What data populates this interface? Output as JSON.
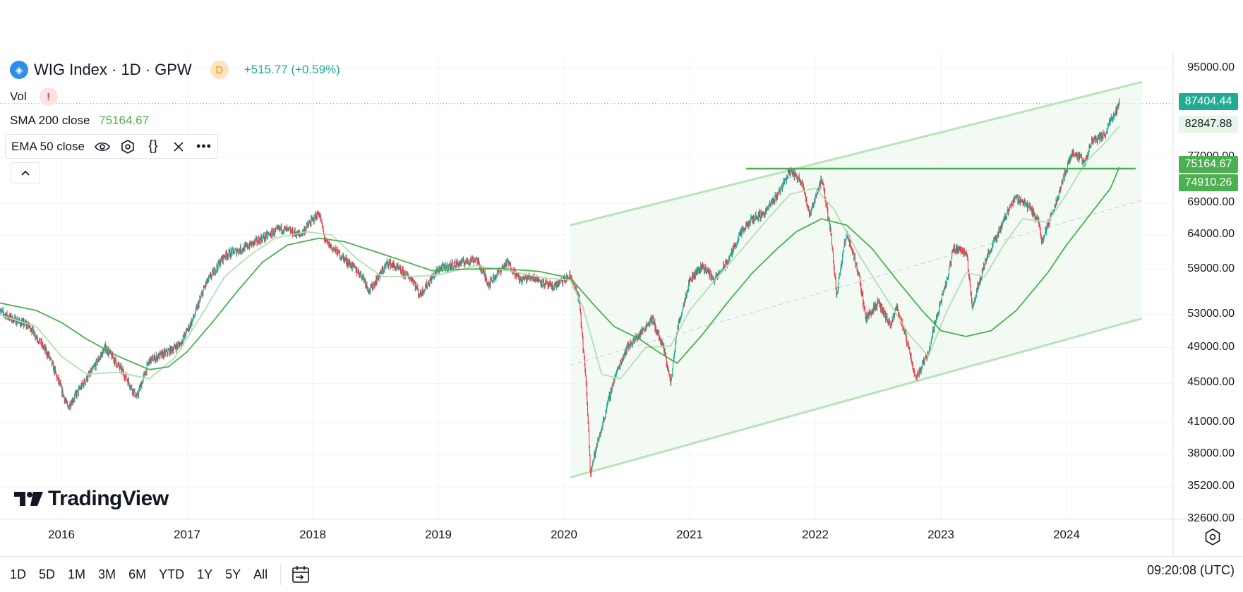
{
  "legend": {
    "symbol": "WIG Index · 1D · GPW",
    "interval_badge": "D",
    "change": "+515.77 (+0.59%)",
    "vol_label": "Vol",
    "vol_warning": "!",
    "sma_label": "SMA 200 close",
    "sma_value": "75164.67",
    "ema_label": "EMA 50 close"
  },
  "bottom_bar": {
    "ranges": [
      "1D",
      "5D",
      "1M",
      "3M",
      "6M",
      "YTD",
      "1Y",
      "5Y",
      "All"
    ],
    "clock": "09:20:08 (UTC)"
  },
  "watermark": "TradingView",
  "price_tags": {
    "last_price": "87404.44",
    "ema_value": "82847.88",
    "sma_value": "75164.67",
    "level_value": "74910.26"
  },
  "colors": {
    "up": "#22ab94",
    "down": "#f23645",
    "sma": "#4caf50",
    "ema": "#b2dfb4",
    "channel": "#b9e3bb",
    "channel_fill": "#e8f5e9",
    "level": "#4caf50"
  },
  "chart_data": {
    "type": "candlestick",
    "title": "WIG Index · 1D · GPW",
    "x_ticks": [
      "2016",
      "2017",
      "2018",
      "2019",
      "2020",
      "2021",
      "2022",
      "2023",
      "2024"
    ],
    "y_ticks": [
      95000,
      77000,
      69000,
      64000,
      59000,
      53000,
      49000,
      45000,
      41000,
      38000,
      35200,
      32600
    ],
    "y_tick_labels": [
      "95000.00",
      "77000.00",
      "69000.00",
      "64000.00",
      "59000.00",
      "53000.00",
      "49000.00",
      "45000.00",
      "41000.00",
      "38000.00",
      "35200.00",
      "32600.00"
    ],
    "ylim": [
      32600,
      95000
    ],
    "xlim": [
      2015.5,
      2024.6
    ],
    "scale": "log",
    "close_path": [
      [
        2015.5,
        53500
      ],
      [
        2015.6,
        52500
      ],
      [
        2015.75,
        51500
      ],
      [
        2015.9,
        48000
      ],
      [
        2016.05,
        42500
      ],
      [
        2016.25,
        46500
      ],
      [
        2016.35,
        49000
      ],
      [
        2016.5,
        46000
      ],
      [
        2016.6,
        43500
      ],
      [
        2016.7,
        47500
      ],
      [
        2016.85,
        48500
      ],
      [
        2016.95,
        49500
      ],
      [
        2017.05,
        52500
      ],
      [
        2017.15,
        57000
      ],
      [
        2017.3,
        61000
      ],
      [
        2017.45,
        62000
      ],
      [
        2017.6,
        63500
      ],
      [
        2017.75,
        65000
      ],
      [
        2017.9,
        64000
      ],
      [
        2018.05,
        67500
      ],
      [
        2018.1,
        63000
      ],
      [
        2018.25,
        60500
      ],
      [
        2018.4,
        58000
      ],
      [
        2018.45,
        56000
      ],
      [
        2018.6,
        60000
      ],
      [
        2018.8,
        57500
      ],
      [
        2018.85,
        55500
      ],
      [
        2019.0,
        59000
      ],
      [
        2019.2,
        60000
      ],
      [
        2019.3,
        60500
      ],
      [
        2019.4,
        57000
      ],
      [
        2019.55,
        60000
      ],
      [
        2019.65,
        57500
      ],
      [
        2019.75,
        58000
      ],
      [
        2019.9,
        56500
      ],
      [
        2020.05,
        58000
      ],
      [
        2020.12,
        55000
      ],
      [
        2020.18,
        44000
      ],
      [
        2020.21,
        36500
      ],
      [
        2020.3,
        40500
      ],
      [
        2020.4,
        45500
      ],
      [
        2020.5,
        49000
      ],
      [
        2020.6,
        50500
      ],
      [
        2020.7,
        52500
      ],
      [
        2020.8,
        48500
      ],
      [
        2020.85,
        45000
      ],
      [
        2020.9,
        51000
      ],
      [
        2021.0,
        57500
      ],
      [
        2021.1,
        59500
      ],
      [
        2021.2,
        57500
      ],
      [
        2021.3,
        60000
      ],
      [
        2021.4,
        64000
      ],
      [
        2021.5,
        66500
      ],
      [
        2021.6,
        67500
      ],
      [
        2021.7,
        70500
      ],
      [
        2021.8,
        74500
      ],
      [
        2021.9,
        72500
      ],
      [
        2021.95,
        67000
      ],
      [
        2022.05,
        73000
      ],
      [
        2022.12,
        65000
      ],
      [
        2022.17,
        55500
      ],
      [
        2022.25,
        64500
      ],
      [
        2022.35,
        58000
      ],
      [
        2022.4,
        52500
      ],
      [
        2022.5,
        54500
      ],
      [
        2022.6,
        51500
      ],
      [
        2022.65,
        54000
      ],
      [
        2022.75,
        48500
      ],
      [
        2022.8,
        45500
      ],
      [
        2022.9,
        48500
      ],
      [
        2022.97,
        53000
      ],
      [
        2023.05,
        57500
      ],
      [
        2023.1,
        62000
      ],
      [
        2023.2,
        61500
      ],
      [
        2023.25,
        54000
      ],
      [
        2023.35,
        60000
      ],
      [
        2023.45,
        64000
      ],
      [
        2023.55,
        68500
      ],
      [
        2023.6,
        70000
      ],
      [
        2023.7,
        68500
      ],
      [
        2023.78,
        66000
      ],
      [
        2023.8,
        63000
      ],
      [
        2023.9,
        68000
      ],
      [
        2024.0,
        75000
      ],
      [
        2024.05,
        78000
      ],
      [
        2024.15,
        76000
      ],
      [
        2024.2,
        80000
      ],
      [
        2024.3,
        81000
      ],
      [
        2024.35,
        84000
      ],
      [
        2024.42,
        87404.44
      ]
    ],
    "series": [
      {
        "name": "SMA 200 close",
        "value": 75164.67,
        "points": [
          [
            2015.5,
            54500
          ],
          [
            2015.8,
            53500
          ],
          [
            2016.0,
            52000
          ],
          [
            2016.2,
            50000
          ],
          [
            2016.45,
            48000
          ],
          [
            2016.7,
            46500
          ],
          [
            2016.85,
            46800
          ],
          [
            2017.0,
            48500
          ],
          [
            2017.2,
            52000
          ],
          [
            2017.4,
            56000
          ],
          [
            2017.6,
            60000
          ],
          [
            2017.8,
            62500
          ],
          [
            2018.05,
            63500
          ],
          [
            2018.25,
            63000
          ],
          [
            2018.5,
            61500
          ],
          [
            2018.75,
            60000
          ],
          [
            2018.95,
            58800
          ],
          [
            2019.2,
            59000
          ],
          [
            2019.5,
            59100
          ],
          [
            2019.8,
            58700
          ],
          [
            2020.05,
            57800
          ],
          [
            2020.25,
            54000
          ],
          [
            2020.4,
            51500
          ],
          [
            2020.6,
            50000
          ],
          [
            2020.75,
            48500
          ],
          [
            2020.9,
            47200
          ],
          [
            2021.1,
            50500
          ],
          [
            2021.3,
            54500
          ],
          [
            2021.5,
            58500
          ],
          [
            2021.7,
            62000
          ],
          [
            2021.85,
            64500
          ],
          [
            2022.05,
            66500
          ],
          [
            2022.25,
            65500
          ],
          [
            2022.45,
            62000
          ],
          [
            2022.65,
            57500
          ],
          [
            2022.85,
            53500
          ],
          [
            2023.0,
            51000
          ],
          [
            2023.2,
            50300
          ],
          [
            2023.4,
            51000
          ],
          [
            2023.6,
            53500
          ],
          [
            2023.85,
            58500
          ],
          [
            2024.0,
            62500
          ],
          [
            2024.2,
            67500
          ],
          [
            2024.35,
            71500
          ],
          [
            2024.42,
            75164.67
          ]
        ]
      },
      {
        "name": "EMA 50 close",
        "value": 82847.88,
        "points": [
          [
            2015.5,
            53000
          ],
          [
            2015.8,
            51500
          ],
          [
            2016.0,
            48000
          ],
          [
            2016.2,
            46000
          ],
          [
            2016.45,
            46200
          ],
          [
            2016.7,
            45500
          ],
          [
            2016.9,
            47800
          ],
          [
            2017.1,
            52500
          ],
          [
            2017.3,
            58000
          ],
          [
            2017.5,
            61000
          ],
          [
            2017.7,
            63500
          ],
          [
            2017.95,
            64500
          ],
          [
            2018.15,
            64000
          ],
          [
            2018.35,
            60500
          ],
          [
            2018.55,
            58000
          ],
          [
            2018.8,
            58000
          ],
          [
            2019.0,
            58200
          ],
          [
            2019.3,
            59500
          ],
          [
            2019.55,
            58800
          ],
          [
            2019.85,
            57800
          ],
          [
            2020.05,
            57500
          ],
          [
            2020.15,
            54000
          ],
          [
            2020.3,
            46000
          ],
          [
            2020.45,
            45500
          ],
          [
            2020.65,
            49000
          ],
          [
            2020.85,
            49200
          ],
          [
            2021.0,
            53500
          ],
          [
            2021.2,
            57500
          ],
          [
            2021.4,
            61500
          ],
          [
            2021.6,
            66000
          ],
          [
            2021.8,
            70500
          ],
          [
            2022.0,
            71500
          ],
          [
            2022.15,
            68000
          ],
          [
            2022.35,
            61000
          ],
          [
            2022.55,
            55500
          ],
          [
            2022.75,
            50500
          ],
          [
            2022.9,
            48000
          ],
          [
            2023.05,
            53500
          ],
          [
            2023.2,
            58500
          ],
          [
            2023.35,
            58000
          ],
          [
            2023.5,
            62500
          ],
          [
            2023.65,
            66500
          ],
          [
            2023.85,
            66000
          ],
          [
            2024.0,
            70500
          ],
          [
            2024.15,
            76000
          ],
          [
            2024.3,
            79500
          ],
          [
            2024.42,
            82847.88
          ]
        ]
      }
    ],
    "channel": {
      "upper": [
        [
          2020.05,
          65500
        ],
        [
          2024.6,
          92000
        ]
      ],
      "middle": [
        [
          2020.05,
          47000
        ],
        [
          2024.6,
          69500
        ]
      ],
      "lower": [
        [
          2020.05,
          36000
        ],
        [
          2024.6,
          52500
        ]
      ]
    },
    "horizontal_level": {
      "value": 74910.26,
      "from": 2021.45,
      "to": 2024.55
    },
    "last_price": 87404.44
  }
}
